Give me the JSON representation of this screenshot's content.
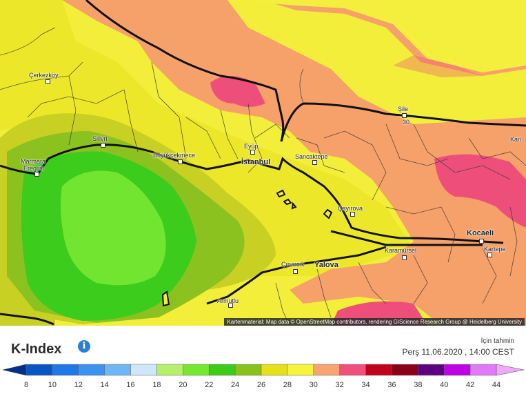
{
  "map": {
    "attribution": "Kartenmaterial: Map data © OpenStreetMap contributors, rendering GIScience Research Group @ Heidelberg University",
    "places": [
      {
        "id": "cerkezkoy",
        "label": "Çerkezköy"
      },
      {
        "id": "silivri",
        "label": "Silivri"
      },
      {
        "id": "marmara-ereglisi-1",
        "label": "Marmara"
      },
      {
        "id": "marmara-ereglisi-2",
        "label": "Ereglisi"
      },
      {
        "id": "buyukcekmece",
        "label": "Büyükçekmece"
      },
      {
        "id": "eyup",
        "label": "Eyüp"
      },
      {
        "id": "istanbul",
        "label": "İstanbul"
      },
      {
        "id": "sancaktepe",
        "label": "Sancaktepe"
      },
      {
        "id": "sile",
        "label": "Şile"
      },
      {
        "id": "sile-val",
        "label": "30"
      },
      {
        "id": "kan",
        "label": "Kan"
      },
      {
        "id": "cayirova",
        "label": "Çayırova"
      },
      {
        "id": "kocaeli",
        "label": "Kocaeli"
      },
      {
        "id": "kartepe",
        "label": "Kartepe"
      },
      {
        "id": "karamursel",
        "label": "Karamürsel"
      },
      {
        "id": "cinarcik",
        "label": "Çınarcık"
      },
      {
        "id": "yalova",
        "label": "Yalova"
      },
      {
        "id": "armutlu",
        "label": "Armutlu"
      }
    ]
  },
  "legend": {
    "title": "K-Index",
    "info_icon": "info-icon",
    "forecast_label": "İçin tahmin",
    "forecast_time": "Perş 11.06.2020 , 14:00 CEST",
    "colors": [
      "#0a55c4",
      "#1e78e6",
      "#3a93f0",
      "#6eb6f6",
      "#cfe6fb",
      "#b6f06a",
      "#76e832",
      "#3ccc1a",
      "#8ac21c",
      "#e6e017",
      "#f7f43c",
      "#f8a470",
      "#f0507a",
      "#c0001e",
      "#8a0016",
      "#5e0082",
      "#c000e6",
      "#e07af8"
    ],
    "ticks": [
      "8",
      "10",
      "12",
      "14",
      "16",
      "18",
      "20",
      "22",
      "24",
      "26",
      "28",
      "30",
      "32",
      "34",
      "36",
      "38",
      "40",
      "42",
      "44"
    ]
  }
}
